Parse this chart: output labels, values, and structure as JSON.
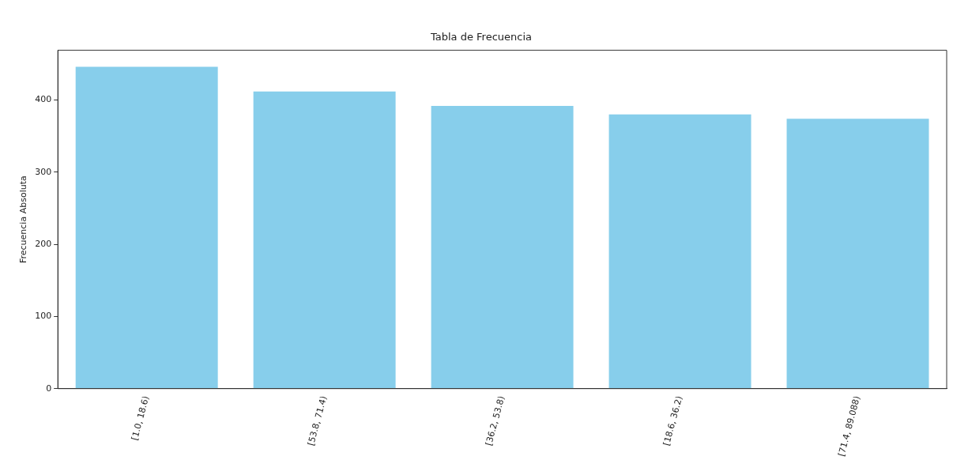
{
  "chart_data": {
    "type": "bar",
    "title": "Tabla de Frecuencia",
    "ylabel": "Frecuencia Absoluta",
    "categories": [
      "[1.0, 18.6)",
      "[53.8, 71.4)",
      "[36.2, 53.8)",
      "[18.6, 36.2)",
      "[71.4, 89.088)"
    ],
    "values": [
      446,
      412,
      392,
      380,
      374
    ],
    "color": "#87ceeb",
    "ylim": [
      0,
      469
    ],
    "yticks": [
      0,
      100,
      200,
      300,
      400
    ],
    "grid": false,
    "legend": false
  }
}
